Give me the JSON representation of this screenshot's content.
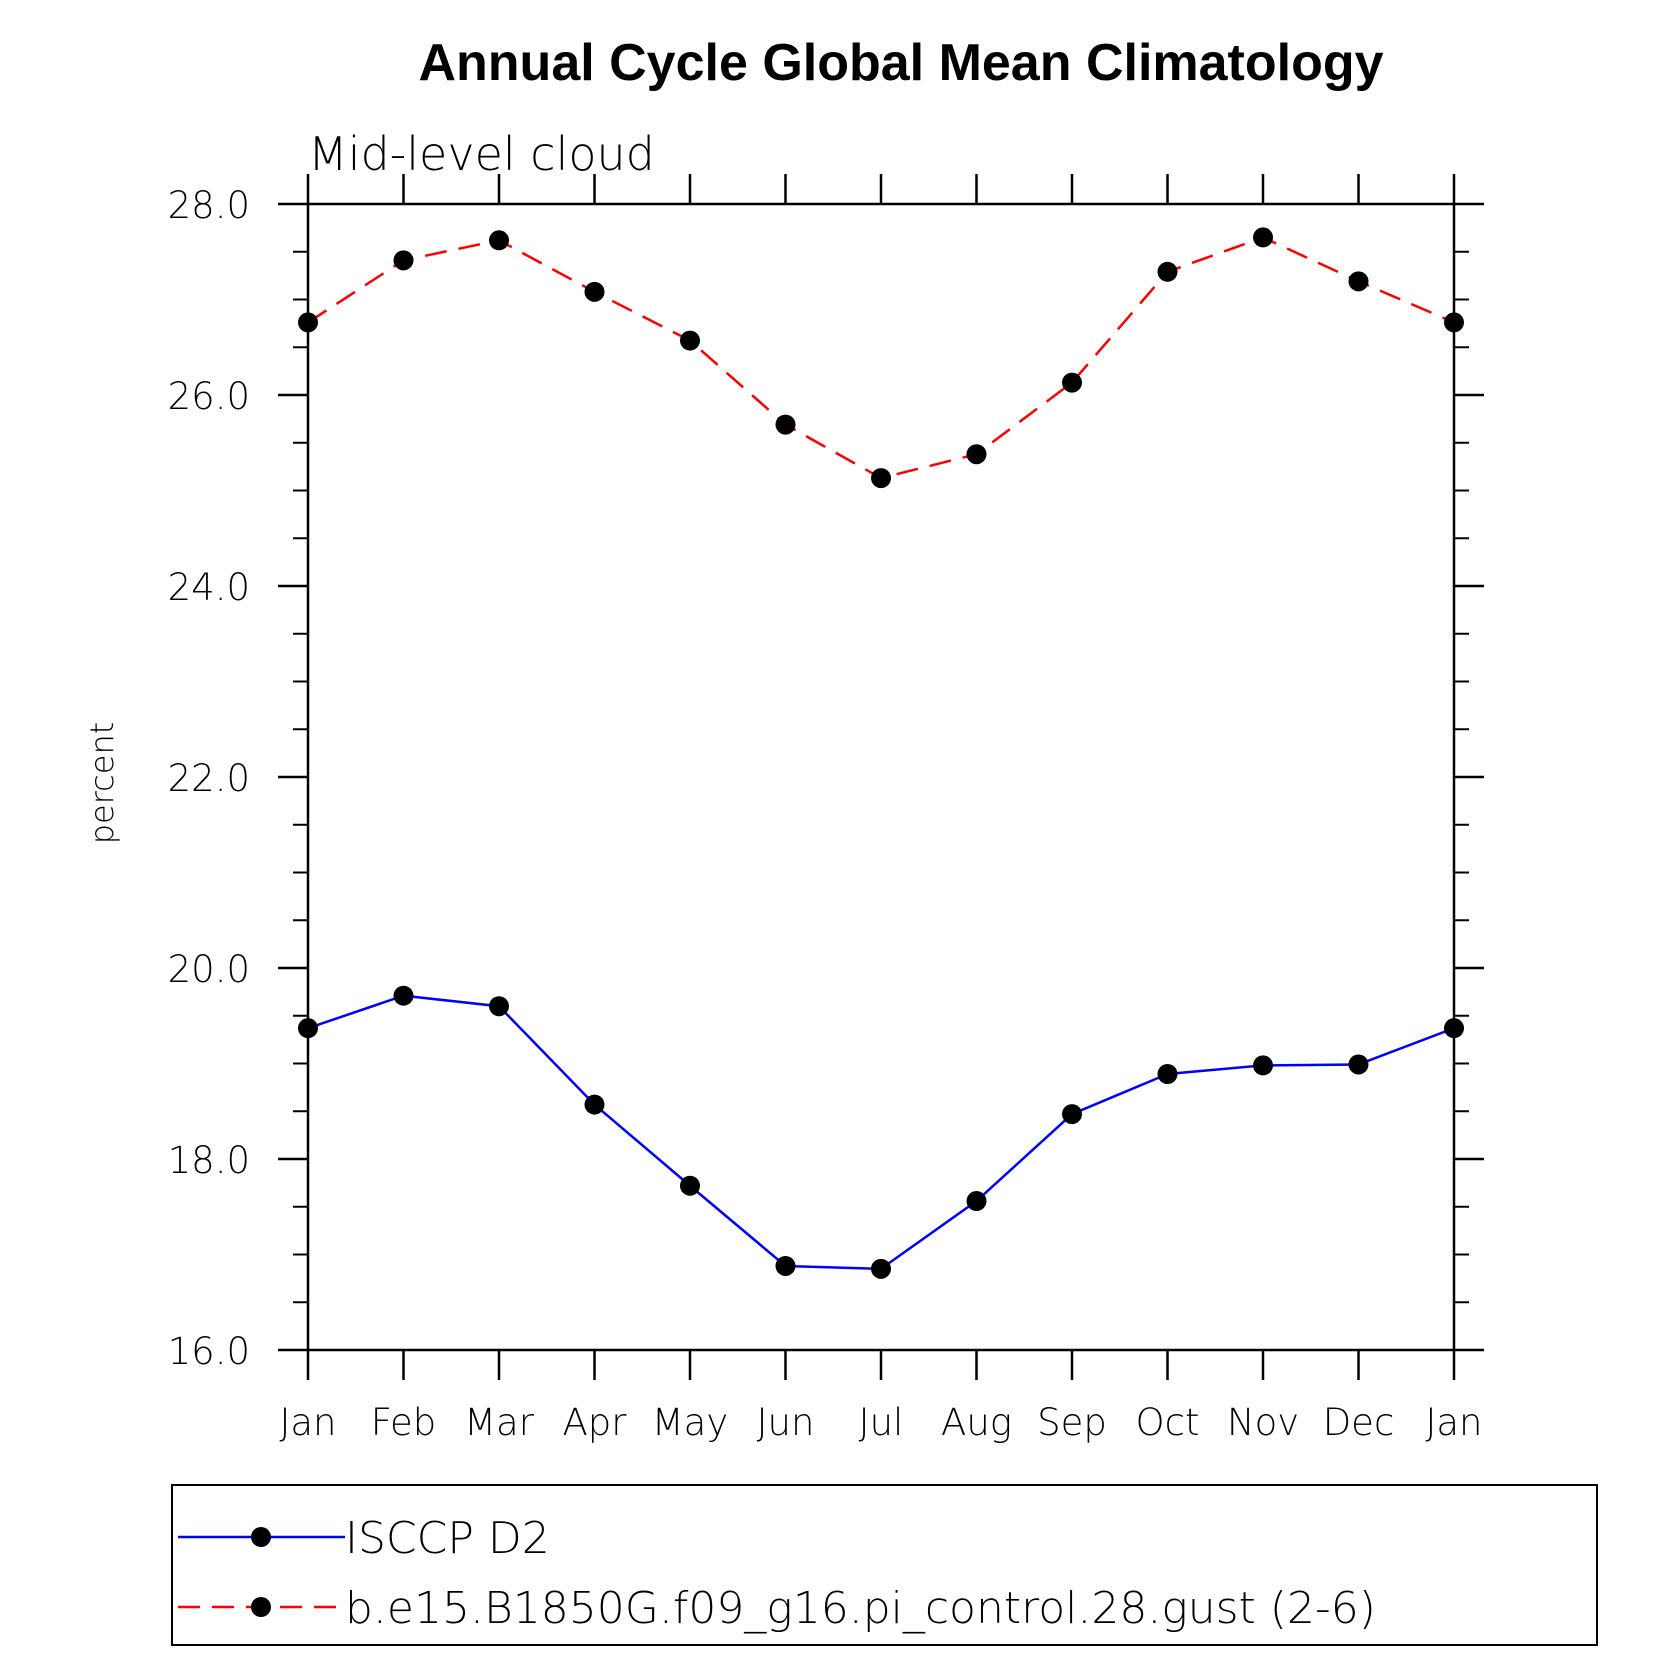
{
  "chart_data": {
    "type": "line",
    "title": "Annual Cycle Global Mean Climatology",
    "subtitle": "Mid-level cloud",
    "xlabel": "",
    "ylabel": "percent",
    "categories": [
      "Jan",
      "Feb",
      "Mar",
      "Apr",
      "May",
      "Jun",
      "Jul",
      "Aug",
      "Sep",
      "Oct",
      "Nov",
      "Dec",
      "Jan"
    ],
    "ylim": [
      16.0,
      28.0
    ],
    "yticks": [
      "16.0",
      "18.0",
      "20.0",
      "22.0",
      "24.0",
      "26.0",
      "28.0"
    ],
    "ytick_values": [
      16,
      18,
      20,
      22,
      24,
      26,
      28
    ],
    "grid": false,
    "legend_position": "bottom",
    "series": [
      {
        "name": "ISCCP D2",
        "color": "#0000ff",
        "dash": "solid",
        "marker": "filled-circle",
        "values": [
          19.37,
          19.71,
          19.6,
          18.57,
          17.72,
          16.88,
          16.85,
          17.56,
          18.47,
          18.89,
          18.98,
          18.99,
          19.37
        ]
      },
      {
        "name": "b.e15.B1850G.f09_g16.pi_control.28.gust (2-6)",
        "color": "#ff0000",
        "dash": "dashed",
        "marker": "filled-circle",
        "values": [
          26.76,
          27.41,
          27.62,
          27.08,
          26.57,
          25.69,
          25.13,
          25.38,
          26.13,
          27.29,
          27.65,
          27.19,
          26.76
        ]
      }
    ]
  }
}
